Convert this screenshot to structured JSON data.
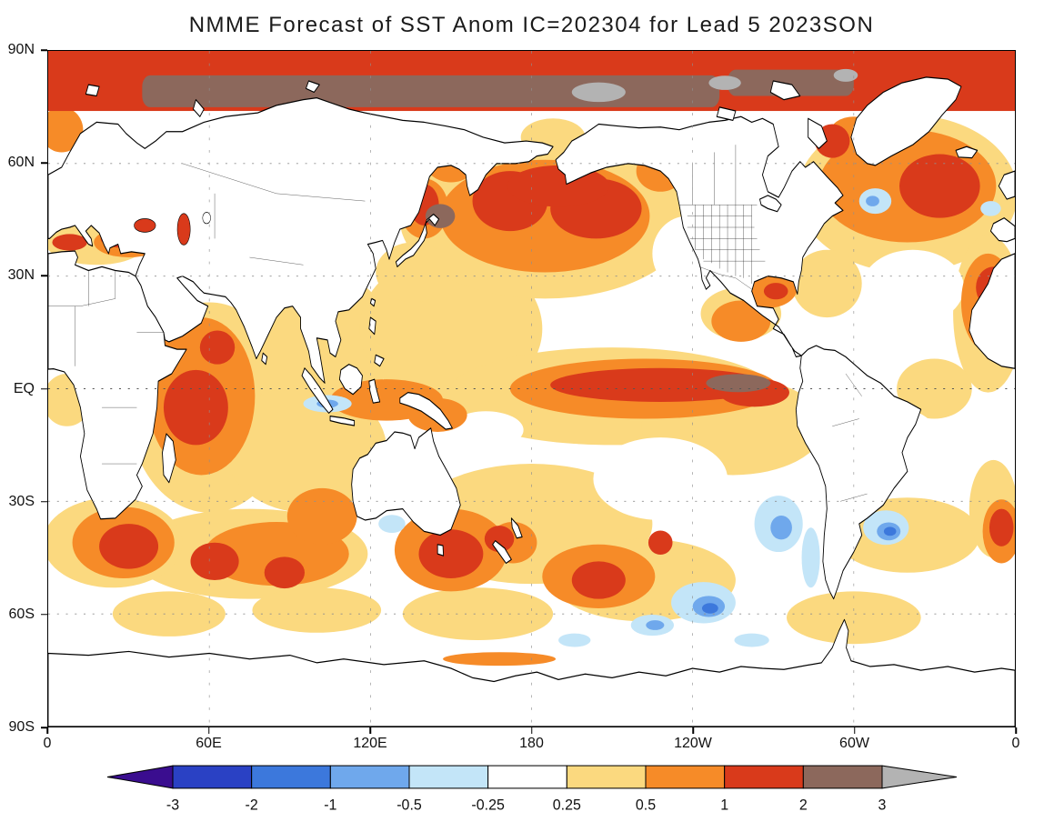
{
  "chart_data": {
    "type": "heatmap",
    "variant": "filled-contour world map on latitude-longitude grid, longitude 0 to 360E",
    "title": "NMME Forecast of SST Anom IC=202304 for Lead 5 2023SON",
    "x_axis": {
      "ticks": [
        {
          "label": "0",
          "lon": 0
        },
        {
          "label": "60E",
          "lon": 60
        },
        {
          "label": "120E",
          "lon": 120
        },
        {
          "label": "180",
          "lon": 180
        },
        {
          "label": "120W",
          "lon": 240
        },
        {
          "label": "60W",
          "lon": 300
        },
        {
          "label": "0",
          "lon": 360
        }
      ]
    },
    "y_axis": {
      "ticks": [
        {
          "label": "90N",
          "lat": 90
        },
        {
          "label": "60N",
          "lat": 60
        },
        {
          "label": "30N",
          "lat": 30
        },
        {
          "label": "EQ",
          "lat": 0
        },
        {
          "label": "30S",
          "lat": -30
        },
        {
          "label": "60S",
          "lat": -60
        },
        {
          "label": "90S",
          "lat": -90
        }
      ]
    },
    "grid": {
      "lat_interval_deg": 30,
      "lon_interval_deg": 60,
      "style": "dotted"
    },
    "colorbar": {
      "orientation": "horizontal",
      "tick_labels": [
        "-3",
        "-2",
        "-1",
        "-0.5",
        "-0.25",
        "0.25",
        "0.5",
        "1",
        "2",
        "3"
      ],
      "cells": [
        {
          "range": "< -3",
          "color": "#3a0d8f"
        },
        {
          "range": "-3 to -2",
          "color": "#2a41c4"
        },
        {
          "range": "-2 to -1",
          "color": "#3c78dc"
        },
        {
          "range": "-1 to -0.5",
          "color": "#6fa8ec"
        },
        {
          "range": "-0.5 to -0.25",
          "color": "#c3e5f8"
        },
        {
          "range": "-0.25 to 0.25",
          "color": "#ffffff"
        },
        {
          "range": "0.25 to 0.5",
          "color": "#fbd97f"
        },
        {
          "range": "0.5 to 1",
          "color": "#f68b28"
        },
        {
          "range": "1 to 2",
          "color": "#d93a1b"
        },
        {
          "range": "2 to 3",
          "color": "#8c685c"
        },
        {
          "range": "> 3",
          "color": "#b3b3b3"
        }
      ]
    },
    "features": [
      {
        "region": "Equatorial eastern Pacific El Nino tongue, 170E to South American coast",
        "anomaly": "+1 to +3"
      },
      {
        "region": "Arctic Ocean marginal seas band around 75-82N",
        "anomaly": "+2 to above +3"
      },
      {
        "region": "Central North Pacific 30-50N",
        "anomaly": "+1 to +2"
      },
      {
        "region": "Northwest Pacific near Japan",
        "anomaly": "+2 to +3"
      },
      {
        "region": "North Atlantic around Greenland and Labrador Sea",
        "anomaly": "+0.5 to +2"
      },
      {
        "region": "Mediterranean, Black and Caspian Seas",
        "anomaly": "+1 to +2"
      },
      {
        "region": "Western Indian Ocean and Arabian Sea",
        "anomaly": "+0.5 to +2"
      },
      {
        "region": "Southern mid-latitude oceans 35-55S scattered warm cores",
        "anomaly": "+0.5 to +2"
      },
      {
        "region": "South of Greenland subpolar patch",
        "anomaly": "-0.25 to -1"
      },
      {
        "region": "South of Java to Banda Sea streak",
        "anomaly": "-0.25 to -1"
      },
      {
        "region": "Southeast Pacific and Southern Ocean patches 45-65S",
        "anomaly": "-0.25 to -2"
      },
      {
        "region": "South Atlantic patch near 45S 45W",
        "anomaly": "-0.5 to -2"
      },
      {
        "region": "Most remaining ocean",
        "anomaly": "+0.25 to +1"
      }
    ]
  }
}
